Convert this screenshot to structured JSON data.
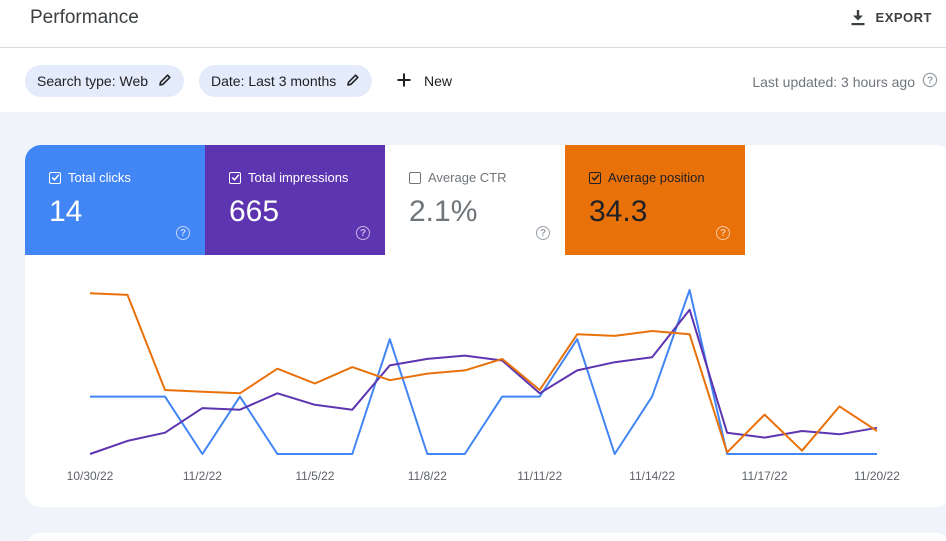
{
  "header": {
    "title": "Performance",
    "export_label": "EXPORT",
    "export_icon": "download-icon"
  },
  "filters": {
    "search_type": "Search type: Web",
    "date": "Date: Last 3 months",
    "new_label": "New",
    "edit_icon": "pencil-icon",
    "add_icon": "plus-icon",
    "last_updated": "Last updated: 3 hours ago"
  },
  "metrics": [
    {
      "label": "Total clicks",
      "value": "14",
      "checked": true,
      "color": "#4285f4"
    },
    {
      "label": "Total impressions",
      "value": "665",
      "checked": true,
      "color": "#5e35b1"
    },
    {
      "label": "Average CTR",
      "value": "2.1%",
      "checked": false,
      "color": "#ffffff"
    },
    {
      "label": "Average position",
      "value": "34.3",
      "checked": true,
      "color": "#e8710a"
    }
  ],
  "chart_data": {
    "type": "line",
    "x_tick_labels": [
      "10/30/22",
      "11/2/22",
      "11/5/22",
      "11/8/22",
      "11/11/22",
      "11/14/22",
      "11/17/22",
      "11/20/22"
    ],
    "x": [
      "10/30/22",
      "10/31/22",
      "11/1/22",
      "11/2/22",
      "11/3/22",
      "11/4/22",
      "11/5/22",
      "11/6/22",
      "11/7/22",
      "11/8/22",
      "11/9/22",
      "11/10/22",
      "11/11/22",
      "11/12/22",
      "11/13/22",
      "11/14/22",
      "11/15/22",
      "11/16/22",
      "11/17/22",
      "11/18/22",
      "11/19/22",
      "11/20/22"
    ],
    "grid": false,
    "legend": "none",
    "series": [
      {
        "metric": "Total clicks",
        "color": "#4285f4",
        "relative_height": [
          0.35,
          0.35,
          0.35,
          0,
          0.35,
          0,
          0,
          0,
          0.7,
          0,
          0,
          0.35,
          0.35,
          0.7,
          0,
          0.35,
          1.0,
          0,
          0,
          0,
          0,
          0
        ]
      },
      {
        "metric": "Total impressions",
        "color": "#5e35b1",
        "relative_height": [
          0,
          0.08,
          0.13,
          0.28,
          0.27,
          0.37,
          0.3,
          0.27,
          0.54,
          0.58,
          0.6,
          0.57,
          0.37,
          0.51,
          0.56,
          0.59,
          0.88,
          0.13,
          0.1,
          0.14,
          0.12,
          0.16
        ]
      },
      {
        "metric": "Average position",
        "color": "#e8710a",
        "relative_height": [
          0.98,
          0.97,
          0.39,
          0.38,
          0.37,
          0.52,
          0.43,
          0.53,
          0.45,
          0.49,
          0.51,
          0.58,
          0.39,
          0.73,
          0.72,
          0.75,
          0.73,
          0.01,
          0.24,
          0.02,
          0.29,
          0.14
        ]
      }
    ]
  }
}
